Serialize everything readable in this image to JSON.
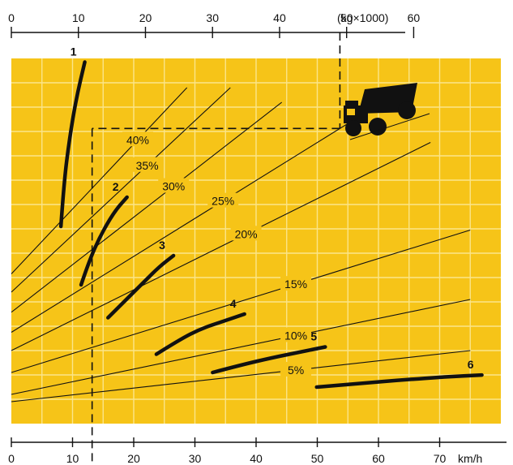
{
  "chart_data": {
    "type": "line",
    "title": "",
    "colors": {
      "plot_background": "#F6C418",
      "grid": "#FBE58A",
      "ink": "#111111",
      "page": "#FFFFFF"
    },
    "top_axis": {
      "unit_label": "(kg×1000)",
      "range": [
        0,
        73
      ],
      "ticks": [
        0,
        10,
        20,
        30,
        40,
        50,
        60
      ],
      "tick_labels": [
        "0",
        "10",
        "20",
        "30",
        "40",
        "50",
        "60"
      ]
    },
    "bottom_axis": {
      "unit_label": "km/h",
      "range": [
        0,
        80
      ],
      "ticks": [
        0,
        10,
        20,
        30,
        40,
        50,
        60,
        70
      ],
      "tick_labels": [
        "0",
        "10",
        "20",
        "30",
        "40",
        "50",
        "60",
        "70"
      ]
    },
    "grid": true,
    "grade_lines": [
      {
        "label": "40%",
        "from": [
          0,
          0.41
        ],
        "to": [
          28.7,
          0.92
        ]
      },
      {
        "label": "35%",
        "from": [
          0,
          0.36
        ],
        "to": [
          35.8,
          0.92
        ]
      },
      {
        "label": "30%",
        "from": [
          0,
          0.305
        ],
        "to": [
          44.2,
          0.88
        ]
      },
      {
        "label": "25%",
        "from": [
          0,
          0.25
        ],
        "to": [
          55.8,
          0.83
        ]
      },
      {
        "label": "20%",
        "from": [
          0,
          0.2
        ],
        "to": [
          68.5,
          0.77
        ]
      },
      {
        "label": "15%",
        "from": [
          0,
          0.14
        ],
        "to": [
          75,
          0.53
        ]
      },
      {
        "label": "10%",
        "from": [
          0,
          0.08
        ],
        "to": [
          75,
          0.34
        ]
      },
      {
        "label": "5%",
        "from": [
          0,
          0.06
        ],
        "to": [
          75,
          0.2
        ]
      }
    ],
    "performance_curves": [
      {
        "name": "1",
        "points": [
          [
            8.1,
            0.54
          ],
          [
            8.6,
            0.66
          ],
          [
            9.5,
            0.78
          ],
          [
            10.6,
            0.89
          ],
          [
            12,
            0.99
          ]
        ]
      },
      {
        "name": "2",
        "points": [
          [
            11.4,
            0.38
          ],
          [
            12.6,
            0.44
          ],
          [
            14.4,
            0.51
          ],
          [
            16.8,
            0.58
          ],
          [
            18.9,
            0.62
          ]
        ]
      },
      {
        "name": "3",
        "points": [
          [
            15.8,
            0.29
          ],
          [
            18.8,
            0.34
          ],
          [
            21.8,
            0.39
          ],
          [
            24.2,
            0.43
          ],
          [
            26.5,
            0.46
          ]
        ]
      },
      {
        "name": "4",
        "points": [
          [
            23.7,
            0.19
          ],
          [
            27.5,
            0.23
          ],
          [
            31,
            0.26
          ],
          [
            34.6,
            0.28
          ],
          [
            38.1,
            0.3
          ]
        ]
      },
      {
        "name": "5",
        "points": [
          [
            32.9,
            0.14
          ],
          [
            37.4,
            0.16
          ],
          [
            42.5,
            0.18
          ],
          [
            46.9,
            0.195
          ],
          [
            51.3,
            0.21
          ]
        ]
      },
      {
        "name": "6",
        "points": [
          [
            49.9,
            0.1
          ],
          [
            56.9,
            0.11
          ],
          [
            64.2,
            0.12
          ],
          [
            70.9,
            0.128
          ],
          [
            76.9,
            0.133
          ]
        ]
      }
    ],
    "example_reading": {
      "gross_weight": 49,
      "grade_line": "25%",
      "curve": "2",
      "speed": 13.2
    }
  }
}
